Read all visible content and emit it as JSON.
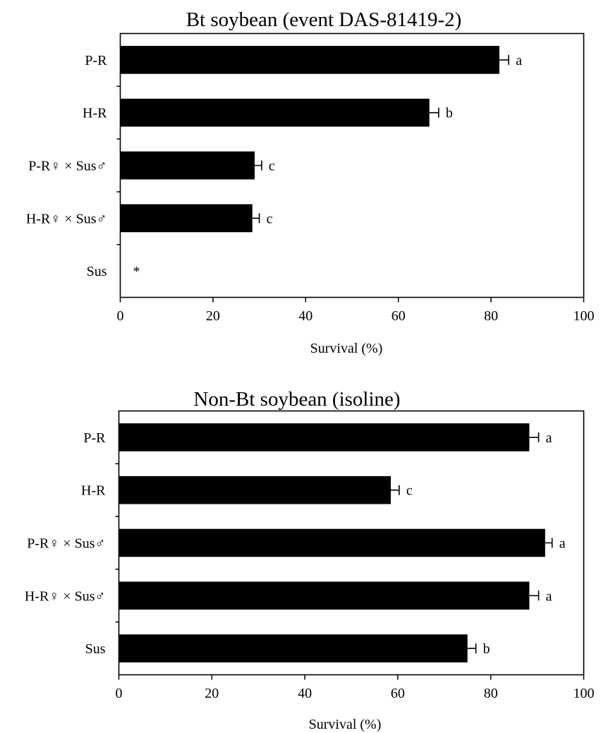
{
  "chart_data": [
    {
      "type": "bar",
      "orientation": "horizontal",
      "title": "Bt soybean (event DAS-81419-2)",
      "xlabel": "Survival (%)",
      "ylabel": "",
      "xlim": [
        0,
        100
      ],
      "xticks": [
        "0",
        "20",
        "40",
        "60",
        "80",
        "100"
      ],
      "categories": [
        "P-R",
        "H-R",
        "P-R♀ × Sus♂",
        "H-R♀ × Sus♂",
        "Sus"
      ],
      "values": [
        81.8,
        66.7,
        29.0,
        28.5,
        0
      ],
      "errors": [
        2.0,
        2.0,
        1.5,
        1.5,
        0
      ],
      "letters": [
        "a",
        "b",
        "c",
        "c",
        "*"
      ],
      "bar_color": "#000000",
      "grid": false
    },
    {
      "type": "bar",
      "orientation": "horizontal",
      "title": "Non-Bt soybean (isoline)",
      "xlabel": "Survival (%)",
      "ylabel": "",
      "xlim": [
        0,
        100
      ],
      "xticks": [
        "0",
        "20",
        "40",
        "60",
        "80",
        "100"
      ],
      "categories": [
        "P-R",
        "H-R",
        "P-R♀ × Sus♂",
        "H-R♀ × Sus♂",
        "Sus"
      ],
      "values": [
        88.3,
        58.5,
        91.7,
        88.3,
        75.0
      ],
      "errors": [
        2.0,
        1.8,
        1.5,
        2.0,
        1.8
      ],
      "letters": [
        "a",
        "c",
        "a",
        "a",
        "b"
      ],
      "bar_color": "#000000",
      "grid": false
    }
  ]
}
